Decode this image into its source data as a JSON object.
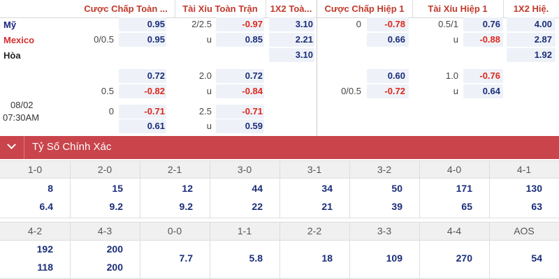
{
  "header": {
    "columns": [
      "Cược Chấp Toàn ...",
      "Tài Xỉu Toàn Trận",
      "1X2 Toà...",
      "Cược Chấp Hiệp 1",
      "Tài Xỉu Hiệp 1",
      "1X2 Hiệ."
    ]
  },
  "match": {
    "teams": [
      "Mỹ",
      "Mexico",
      "Hòa"
    ],
    "date": "08/02",
    "time": "07:30AM",
    "rows": [
      [
        null,
        "0.95",
        "2/2.5",
        "-0.97",
        "3.10",
        "0",
        "-0.78",
        "0.5/1",
        "0.76",
        "4.00"
      ],
      [
        "0/0.5",
        "0.95",
        "u",
        "0.85",
        "2.21",
        null,
        "0.66",
        "u",
        "-0.88",
        "2.87"
      ],
      [
        null,
        null,
        null,
        null,
        "3.10",
        null,
        null,
        null,
        null,
        "1.92"
      ],
      [
        null,
        "0.72",
        "2.0",
        "0.72",
        null,
        null,
        "0.60",
        "1.0",
        "-0.76",
        null
      ],
      [
        "0.5",
        "-0.82",
        "u",
        "-0.84",
        null,
        "0/0.5",
        "-0.72",
        "u",
        "0.64",
        null
      ],
      [
        "0",
        "-0.71",
        "2.5",
        "-0.71",
        null,
        null,
        null,
        null,
        null,
        null
      ],
      [
        null,
        "0.61",
        "u",
        "0.59",
        null,
        null,
        null,
        null,
        null,
        null
      ]
    ]
  },
  "section": {
    "title": "Tỷ Số Chính Xác"
  },
  "scores": [
    [
      {
        "score": "1-0",
        "values": [
          "8",
          "6.4"
        ]
      },
      {
        "score": "2-0",
        "values": [
          "15",
          "9.2"
        ]
      },
      {
        "score": "2-1",
        "values": [
          "12",
          "9.2"
        ]
      },
      {
        "score": "3-0",
        "values": [
          "44",
          "22"
        ]
      },
      {
        "score": "3-1",
        "values": [
          "34",
          "21"
        ]
      },
      {
        "score": "3-2",
        "values": [
          "50",
          "39"
        ]
      },
      {
        "score": "4-0",
        "values": [
          "171",
          "65"
        ]
      },
      {
        "score": "4-1",
        "values": [
          "130",
          "63"
        ]
      }
    ],
    [
      {
        "score": "4-2",
        "values": [
          "192",
          "118"
        ]
      },
      {
        "score": "4-3",
        "values": [
          "200",
          "200"
        ]
      },
      {
        "score": "0-0",
        "values": [
          "7.7"
        ]
      },
      {
        "score": "1-1",
        "values": [
          "5.8"
        ]
      },
      {
        "score": "2-2",
        "values": [
          "18"
        ]
      },
      {
        "score": "3-3",
        "values": [
          "109"
        ]
      },
      {
        "score": "4-4",
        "values": [
          "270"
        ]
      },
      {
        "score": "AOS",
        "values": [
          "54"
        ]
      }
    ]
  ]
}
